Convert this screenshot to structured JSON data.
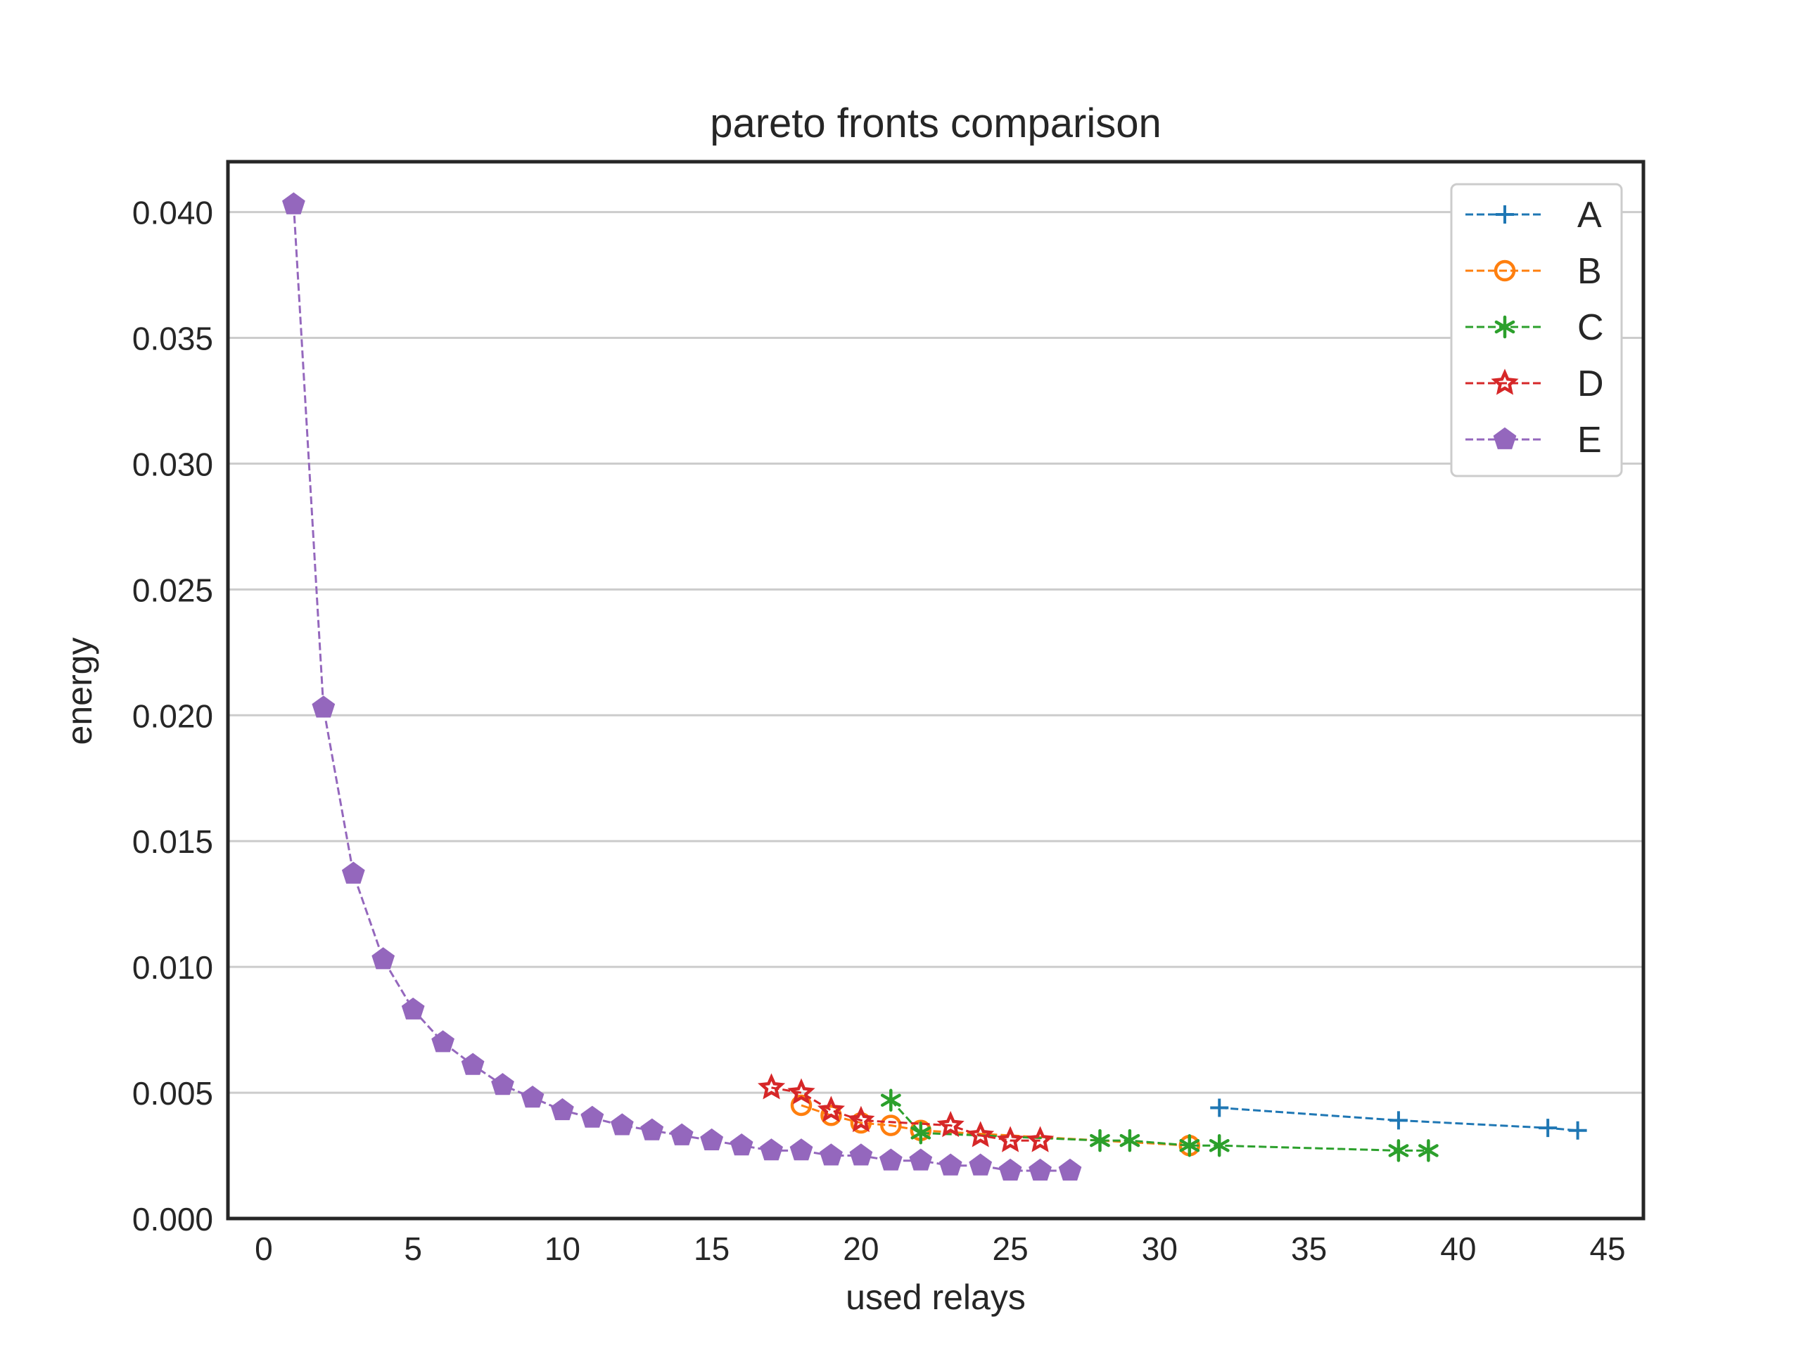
{
  "chart_data": {
    "type": "line",
    "title": "pareto fronts comparison",
    "xlabel": "used relays",
    "ylabel": "energy",
    "xlim": [
      -1.2,
      46.2
    ],
    "ylim": [
      0,
      0.042
    ],
    "xticks": [
      0,
      5,
      10,
      15,
      20,
      25,
      30,
      35,
      40,
      45
    ],
    "xtick_labels": [
      "0",
      "5",
      "10",
      "15",
      "20",
      "25",
      "30",
      "35",
      "40",
      "45"
    ],
    "yticks": [
      0,
      0.005,
      0.01,
      0.015,
      0.02,
      0.025,
      0.03,
      0.035,
      0.04
    ],
    "ytick_labels": [
      "0.000",
      "0.005",
      "0.010",
      "0.015",
      "0.020",
      "0.025",
      "0.030",
      "0.035",
      "0.040"
    ],
    "grid": "horizontal",
    "legend_position": "top-right",
    "series": [
      {
        "name": "A",
        "color": "#1f77b4",
        "marker": "plus",
        "x": [
          32,
          38,
          43,
          44
        ],
        "y": [
          0.0044,
          0.0039,
          0.0036,
          0.0035
        ]
      },
      {
        "name": "B",
        "color": "#ff7f0e",
        "marker": "circle",
        "x": [
          18,
          19,
          20,
          21,
          22,
          31
        ],
        "y": [
          0.0045,
          0.0041,
          0.0038,
          0.0037,
          0.0035,
          0.0029
        ]
      },
      {
        "name": "C",
        "color": "#2ca02c",
        "marker": "asterisk",
        "x": [
          21,
          22,
          28,
          29,
          31,
          32,
          38,
          39
        ],
        "y": [
          0.0047,
          0.0034,
          0.0031,
          0.0031,
          0.0029,
          0.0029,
          0.0027,
          0.0027
        ]
      },
      {
        "name": "D",
        "color": "#d62728",
        "marker": "star",
        "x": [
          17,
          18,
          19,
          20,
          23,
          24,
          25,
          26
        ],
        "y": [
          0.0052,
          0.005,
          0.0043,
          0.0039,
          0.0037,
          0.0033,
          0.0031,
          0.0031
        ]
      },
      {
        "name": "E",
        "color": "#9467bd",
        "marker": "pentagon",
        "x": [
          1,
          2,
          3,
          4,
          5,
          6,
          7,
          8,
          9,
          10,
          11,
          12,
          13,
          14,
          15,
          16,
          17,
          18,
          19,
          20,
          21,
          22,
          23,
          24,
          25,
          26,
          27
        ],
        "y": [
          0.0403,
          0.0203,
          0.0137,
          0.0103,
          0.0083,
          0.007,
          0.0061,
          0.0053,
          0.0048,
          0.0043,
          0.004,
          0.0037,
          0.0035,
          0.0033,
          0.0031,
          0.0029,
          0.0027,
          0.0027,
          0.0025,
          0.0025,
          0.0023,
          0.0023,
          0.0021,
          0.0021,
          0.0019,
          0.0019,
          0.0019
        ]
      }
    ]
  }
}
